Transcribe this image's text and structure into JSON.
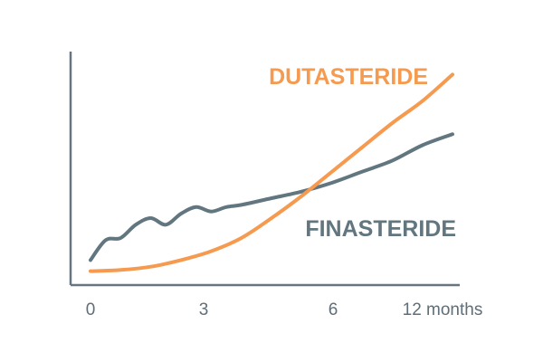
{
  "chart_data": {
    "type": "line",
    "title": "",
    "xlabel": "",
    "ylabel": "",
    "x_ticks": [
      "0",
      "3",
      "6",
      "12 months"
    ],
    "xlim": [
      0,
      12
    ],
    "ylim": [
      0,
      10
    ],
    "grid": false,
    "legend": "none",
    "colors": {
      "axis": "#66757f",
      "dutasteride": "#f59a4f",
      "finasteride": "#627680"
    },
    "series": [
      {
        "name": "DUTASTERIDE",
        "color": "#f59a4f",
        "x": [
          0,
          1,
          2,
          3,
          4,
          5,
          6,
          7,
          8,
          9,
          10,
          11,
          12
        ],
        "y": [
          0.1,
          0.15,
          0.3,
          0.6,
          1.0,
          1.6,
          2.5,
          3.5,
          4.6,
          5.7,
          6.8,
          7.8,
          9.0
        ]
      },
      {
        "name": "FINASTERIDE",
        "color": "#627680",
        "x": [
          0,
          0.5,
          1,
          1.5,
          2,
          2.5,
          3,
          3.5,
          4,
          4.5,
          5,
          6,
          7,
          8,
          9,
          10,
          11,
          12
        ],
        "y": [
          0.6,
          1.5,
          1.6,
          2.2,
          2.5,
          2.2,
          2.7,
          3.0,
          2.8,
          3.0,
          3.1,
          3.4,
          3.7,
          4.1,
          4.6,
          5.1,
          5.8,
          6.3
        ]
      }
    ]
  }
}
